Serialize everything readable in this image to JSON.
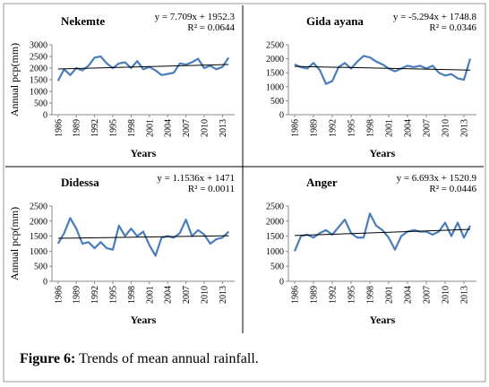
{
  "chart_data": [
    {
      "type": "line",
      "title": "Nekemte",
      "ylabel": "Annual pcp(mm)",
      "xlabel": "Years",
      "annotations": [
        "y = 7.709x + 1952.3",
        "R² = 0.0644"
      ],
      "x": [
        1986,
        1987,
        1988,
        1989,
        1990,
        1991,
        1992,
        1993,
        1994,
        1995,
        1996,
        1997,
        1998,
        1999,
        2000,
        2001,
        2002,
        2003,
        2004,
        2005,
        2006,
        2007,
        2008,
        2009,
        2010,
        2011,
        2012,
        2013,
        2014
      ],
      "series": [
        {
          "color": "#4a7ebb",
          "values": [
            1450,
            1950,
            1700,
            2000,
            1900,
            2100,
            2450,
            2500,
            2200,
            2000,
            2200,
            2250,
            2000,
            2300,
            1950,
            2050,
            1900,
            1700,
            1750,
            1800,
            2200,
            2150,
            2250,
            2400,
            2000,
            2100,
            1950,
            2050,
            2450
          ]
        }
      ],
      "xlim": [
        1985,
        2015
      ],
      "xticks": [
        1986,
        1989,
        1992,
        1995,
        1998,
        2001,
        2004,
        2007,
        2010,
        2013
      ],
      "ylim": [
        0,
        3000
      ],
      "yticks": [
        0,
        500,
        1000,
        1500,
        2000,
        2500,
        3000
      ],
      "trend_color": "#000000"
    },
    {
      "type": "line",
      "title": "Gida ayana",
      "xlabel": "Years",
      "annotations": [
        "y = -5.294x + 1748.8",
        "R² = 0.0346"
      ],
      "x": [
        1986,
        1987,
        1988,
        1989,
        1990,
        1991,
        1992,
        1993,
        1994,
        1995,
        1996,
        1997,
        1998,
        1999,
        2000,
        2001,
        2002,
        2003,
        2004,
        2005,
        2006,
        2007,
        2008,
        2009,
        2010,
        2011,
        2012,
        2013,
        2014
      ],
      "series": [
        {
          "color": "#4a7ebb",
          "values": [
            1800,
            1700,
            1650,
            1850,
            1600,
            1100,
            1200,
            1700,
            1850,
            1650,
            1900,
            2100,
            2050,
            1900,
            1800,
            1650,
            1550,
            1650,
            1750,
            1700,
            1750,
            1650,
            1750,
            1500,
            1400,
            1450,
            1300,
            1250,
            2000
          ]
        }
      ],
      "xlim": [
        1985,
        2015
      ],
      "xticks": [
        1986,
        1989,
        1992,
        1995,
        1998,
        2001,
        2004,
        2007,
        2010,
        2013
      ],
      "ylim": [
        0,
        2500
      ],
      "yticks": [
        0,
        500,
        1000,
        1500,
        2000,
        2500
      ],
      "trend_color": "#000000"
    },
    {
      "type": "line",
      "title": "Didessa",
      "ylabel": "Annual pcp(mm)",
      "xlabel": "Years",
      "annotations": [
        "y = 1.1536x + 1471",
        "R² = 0.0011"
      ],
      "x": [
        1986,
        1987,
        1988,
        1989,
        1990,
        1991,
        1992,
        1993,
        1994,
        1995,
        1996,
        1997,
        1998,
        1999,
        2000,
        2001,
        2002,
        2003,
        2004,
        2005,
        2006,
        2007,
        2008,
        2009,
        2010,
        2011,
        2012,
        2013,
        2014
      ],
      "series": [
        {
          "color": "#4a7ebb",
          "values": [
            1250,
            1600,
            2100,
            1750,
            1250,
            1300,
            1100,
            1300,
            1100,
            1050,
            1850,
            1500,
            1750,
            1500,
            1650,
            1200,
            850,
            1450,
            1500,
            1450,
            1600,
            2050,
            1500,
            1700,
            1550,
            1250,
            1400,
            1450,
            1650
          ]
        }
      ],
      "xlim": [
        1985,
        2015
      ],
      "xticks": [
        1986,
        1989,
        1992,
        1995,
        1998,
        2001,
        2004,
        2007,
        2010,
        2013
      ],
      "ylim": [
        0,
        2500
      ],
      "yticks": [
        0,
        500,
        1000,
        1500,
        2000,
        2500
      ],
      "trend_color": "#000000"
    },
    {
      "type": "line",
      "title": "Anger",
      "xlabel": "Years",
      "annotations": [
        "y = 6.693x + 1520.9",
        "R² = 0.0446"
      ],
      "x": [
        1986,
        1987,
        1988,
        1989,
        1990,
        1991,
        1992,
        1993,
        1994,
        1995,
        1996,
        1997,
        1998,
        1999,
        2000,
        2001,
        2002,
        2003,
        2004,
        2005,
        2006,
        2007,
        2008,
        2009,
        2010,
        2011,
        2012,
        2013,
        2014
      ],
      "series": [
        {
          "color": "#4a7ebb",
          "values": [
            1000,
            1500,
            1550,
            1450,
            1600,
            1700,
            1550,
            1800,
            2050,
            1600,
            1450,
            1450,
            2250,
            1850,
            1700,
            1450,
            1050,
            1500,
            1650,
            1700,
            1650,
            1650,
            1550,
            1650,
            1950,
            1500,
            1950,
            1450,
            1850
          ]
        }
      ],
      "xlim": [
        1985,
        2015
      ],
      "xticks": [
        1986,
        1989,
        1992,
        1995,
        1998,
        2001,
        2004,
        2007,
        2010,
        2013
      ],
      "ylim": [
        0,
        2500
      ],
      "yticks": [
        0,
        500,
        1000,
        1500,
        2000,
        2500
      ],
      "trend_color": "#000000"
    }
  ],
  "caption": {
    "label": "Figure 6:",
    "text": "Trends of mean annual rainfall."
  }
}
